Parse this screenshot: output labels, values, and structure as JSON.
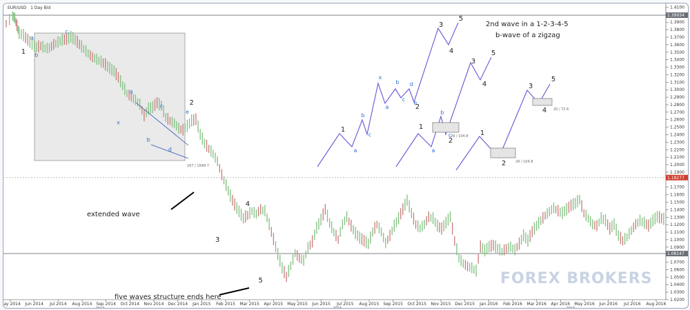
{
  "chart_data": {
    "type": "line",
    "symbol": "EUR/USD",
    "timeframe": "1 Day Bid",
    "y_ticks": [
      "1.4100",
      "1.4000",
      "1.3900",
      "1.3800",
      "1.3700",
      "1.3600",
      "1.3500",
      "1.3400",
      "1.3300",
      "1.3200",
      "1.3100",
      "1.3000",
      "1.2900",
      "1.2800",
      "1.2700",
      "1.2600",
      "1.2500",
      "1.2400",
      "1.2300",
      "1.2200",
      "1.2100",
      "1.2000",
      "1.1900",
      "1.1700",
      "1.1600",
      "1.1500",
      "1.1400",
      "1.1300",
      "1.1200",
      "1.1100",
      "1.1000",
      "1.0900",
      "1.0700",
      "1.0600",
      "1.0500",
      "1.0400",
      "1.0300",
      "1.0200"
    ],
    "ylim": [
      1.02,
      1.415
    ],
    "x_ticks": [
      "May 2014",
      "Jun 2014",
      "Jul 2014",
      "Aug 2014",
      "Sep 2014",
      "Oct 2014",
      "Nov 2014",
      "Dec 2014",
      "Jan 2015",
      "Feb 2015",
      "Mar 2015",
      "Apr 2015",
      "May 2015",
      "Jun 2015",
      "Jul 2015",
      "Aug 2015",
      "Sep 2015",
      "Oct 2015",
      "Nov 2015",
      "Dec 2015",
      "Jan 2016",
      "Feb 2016",
      "Mar 2016",
      "Apr 2016",
      "May 2016",
      "Jun 2016",
      "Jul 2016",
      "Aug 2016"
    ],
    "x_sublabels": [
      "2014",
      "2015",
      "2016"
    ],
    "price_markers": [
      {
        "label": "1.39934",
        "price": 1.39934,
        "color": "#6b6f78"
      },
      {
        "label": "1.18277",
        "price": 1.18277,
        "color": "#d04030"
      },
      {
        "label": "1.08147",
        "price": 1.08147,
        "color": "#6b6f78"
      }
    ],
    "series": [
      {
        "values": [
          {
            "x": 0,
            "y": 1.388
          },
          {
            "x": 3,
            "y": 1.398
          },
          {
            "x": 4,
            "y": 1.395
          },
          {
            "x": 5,
            "y": 1.385
          },
          {
            "x": 6,
            "y": 1.375
          },
          {
            "x": 8,
            "y": 1.372
          },
          {
            "x": 10,
            "y": 1.366
          },
          {
            "x": 12,
            "y": 1.36
          },
          {
            "x": 14,
            "y": 1.356
          },
          {
            "x": 16,
            "y": 1.358
          },
          {
            "x": 18,
            "y": 1.355
          },
          {
            "x": 20,
            "y": 1.355
          },
          {
            "x": 22,
            "y": 1.36
          },
          {
            "x": 24,
            "y": 1.363
          },
          {
            "x": 26,
            "y": 1.366
          },
          {
            "x": 28,
            "y": 1.367
          },
          {
            "x": 30,
            "y": 1.37
          },
          {
            "x": 32,
            "y": 1.366
          },
          {
            "x": 34,
            "y": 1.36
          },
          {
            "x": 36,
            "y": 1.354
          },
          {
            "x": 38,
            "y": 1.348
          },
          {
            "x": 40,
            "y": 1.343
          },
          {
            "x": 42,
            "y": 1.34
          },
          {
            "x": 44,
            "y": 1.337
          },
          {
            "x": 46,
            "y": 1.333
          },
          {
            "x": 48,
            "y": 1.328
          },
          {
            "x": 50,
            "y": 1.324
          },
          {
            "x": 52,
            "y": 1.316
          },
          {
            "x": 54,
            "y": 1.305
          },
          {
            "x": 56,
            "y": 1.295
          },
          {
            "x": 58,
            "y": 1.29
          },
          {
            "x": 60,
            "y": 1.286
          },
          {
            "x": 62,
            "y": 1.28
          },
          {
            "x": 64,
            "y": 1.265
          },
          {
            "x": 66,
            "y": 1.274
          },
          {
            "x": 68,
            "y": 1.276
          },
          {
            "x": 70,
            "y": 1.282
          },
          {
            "x": 72,
            "y": 1.278
          },
          {
            "x": 74,
            "y": 1.263
          },
          {
            "x": 76,
            "y": 1.258
          },
          {
            "x": 78,
            "y": 1.255
          },
          {
            "x": 80,
            "y": 1.248
          },
          {
            "x": 82,
            "y": 1.246
          },
          {
            "x": 84,
            "y": 1.251
          },
          {
            "x": 86,
            "y": 1.258
          },
          {
            "x": 88,
            "y": 1.26
          },
          {
            "x": 90,
            "y": 1.24
          },
          {
            "x": 92,
            "y": 1.228
          },
          {
            "x": 94,
            "y": 1.221
          },
          {
            "x": 96,
            "y": 1.214
          },
          {
            "x": 98,
            "y": 1.204
          },
          {
            "x": 100,
            "y": 1.186
          },
          {
            "x": 102,
            "y": 1.172
          },
          {
            "x": 104,
            "y": 1.158
          },
          {
            "x": 106,
            "y": 1.146
          },
          {
            "x": 108,
            "y": 1.137
          },
          {
            "x": 110,
            "y": 1.128
          },
          {
            "x": 112,
            "y": 1.132
          },
          {
            "x": 114,
            "y": 1.138
          },
          {
            "x": 116,
            "y": 1.134
          },
          {
            "x": 118,
            "y": 1.14
          },
          {
            "x": 120,
            "y": 1.138
          },
          {
            "x": 122,
            "y": 1.12
          },
          {
            "x": 124,
            "y": 1.1
          },
          {
            "x": 126,
            "y": 1.08
          },
          {
            "x": 128,
            "y": 1.062
          },
          {
            "x": 130,
            "y": 1.05
          },
          {
            "x": 132,
            "y": 1.065
          },
          {
            "x": 134,
            "y": 1.082
          },
          {
            "x": 136,
            "y": 1.075
          },
          {
            "x": 138,
            "y": 1.072
          },
          {
            "x": 140,
            "y": 1.088
          },
          {
            "x": 142,
            "y": 1.097
          },
          {
            "x": 144,
            "y": 1.115
          },
          {
            "x": 146,
            "y": 1.126
          },
          {
            "x": 148,
            "y": 1.14
          },
          {
            "x": 150,
            "y": 1.122
          },
          {
            "x": 152,
            "y": 1.11
          },
          {
            "x": 154,
            "y": 1.1
          },
          {
            "x": 156,
            "y": 1.12
          },
          {
            "x": 158,
            "y": 1.13
          },
          {
            "x": 160,
            "y": 1.118
          },
          {
            "x": 162,
            "y": 1.108
          },
          {
            "x": 164,
            "y": 1.102
          },
          {
            "x": 166,
            "y": 1.098
          },
          {
            "x": 168,
            "y": 1.094
          },
          {
            "x": 170,
            "y": 1.11
          },
          {
            "x": 172,
            "y": 1.12
          },
          {
            "x": 174,
            "y": 1.11
          },
          {
            "x": 176,
            "y": 1.095
          },
          {
            "x": 178,
            "y": 1.105
          },
          {
            "x": 180,
            "y": 1.118
          },
          {
            "x": 182,
            "y": 1.128
          },
          {
            "x": 184,
            "y": 1.14
          },
          {
            "x": 186,
            "y": 1.152
          },
          {
            "x": 188,
            "y": 1.135
          },
          {
            "x": 190,
            "y": 1.12
          },
          {
            "x": 192,
            "y": 1.115
          },
          {
            "x": 194,
            "y": 1.12
          },
          {
            "x": 196,
            "y": 1.13
          },
          {
            "x": 198,
            "y": 1.128
          },
          {
            "x": 200,
            "y": 1.118
          },
          {
            "x": 202,
            "y": 1.114
          },
          {
            "x": 204,
            "y": 1.122
          },
          {
            "x": 206,
            "y": 1.13
          },
          {
            "x": 208,
            "y": 1.098
          },
          {
            "x": 210,
            "y": 1.075
          },
          {
            "x": 212,
            "y": 1.068
          },
          {
            "x": 214,
            "y": 1.064
          },
          {
            "x": 216,
            "y": 1.062
          },
          {
            "x": 218,
            "y": 1.058
          },
          {
            "x": 220,
            "y": 1.09
          },
          {
            "x": 222,
            "y": 1.085
          },
          {
            "x": 224,
            "y": 1.09
          },
          {
            "x": 226,
            "y": 1.092
          },
          {
            "x": 228,
            "y": 1.088
          },
          {
            "x": 230,
            "y": 1.084
          },
          {
            "x": 232,
            "y": 1.088
          },
          {
            "x": 234,
            "y": 1.09
          },
          {
            "x": 236,
            "y": 1.086
          },
          {
            "x": 238,
            "y": 1.094
          },
          {
            "x": 240,
            "y": 1.105
          },
          {
            "x": 242,
            "y": 1.098
          },
          {
            "x": 244,
            "y": 1.11
          },
          {
            "x": 246,
            "y": 1.118
          },
          {
            "x": 248,
            "y": 1.125
          },
          {
            "x": 250,
            "y": 1.132
          },
          {
            "x": 252,
            "y": 1.137
          },
          {
            "x": 254,
            "y": 1.142
          },
          {
            "x": 256,
            "y": 1.138
          },
          {
            "x": 258,
            "y": 1.135
          },
          {
            "x": 260,
            "y": 1.14
          },
          {
            "x": 262,
            "y": 1.145
          },
          {
            "x": 264,
            "y": 1.148
          },
          {
            "x": 266,
            "y": 1.153
          },
          {
            "x": 268,
            "y": 1.135
          },
          {
            "x": 270,
            "y": 1.128
          },
          {
            "x": 272,
            "y": 1.12
          },
          {
            "x": 274,
            "y": 1.118
          },
          {
            "x": 276,
            "y": 1.128
          },
          {
            "x": 278,
            "y": 1.125
          },
          {
            "x": 280,
            "y": 1.114
          },
          {
            "x": 282,
            "y": 1.12
          },
          {
            "x": 284,
            "y": 1.105
          },
          {
            "x": 286,
            "y": 1.098
          },
          {
            "x": 288,
            "y": 1.103
          },
          {
            "x": 290,
            "y": 1.112
          },
          {
            "x": 292,
            "y": 1.12
          },
          {
            "x": 294,
            "y": 1.125
          },
          {
            "x": 296,
            "y": 1.122
          },
          {
            "x": 298,
            "y": 1.118
          },
          {
            "x": 300,
            "y": 1.125
          },
          {
            "x": 302,
            "y": 1.13
          },
          {
            "x": 304,
            "y": 1.128
          },
          {
            "x": 306,
            "y": 1.126
          }
        ]
      }
    ],
    "annotations": {
      "left_wave_labels": [
        {
          "text": "1",
          "x": 8,
          "y": 1.348,
          "style": "black"
        },
        {
          "text": "a",
          "x": 12,
          "y": 1.367,
          "style": "blue"
        },
        {
          "text": "b",
          "x": 14,
          "y": 1.344,
          "style": "blue"
        },
        {
          "text": "c",
          "x": 28,
          "y": 1.375,
          "style": "blue"
        },
        {
          "text": "a",
          "x": 58,
          "y": 1.295,
          "style": "blue"
        },
        {
          "text": "x",
          "x": 52,
          "y": 1.254,
          "style": "blue"
        },
        {
          "text": "c",
          "x": 72,
          "y": 1.276,
          "style": "blue"
        },
        {
          "text": "b",
          "x": 66,
          "y": 1.231,
          "style": "blue"
        },
        {
          "text": "d",
          "x": 76,
          "y": 1.218,
          "style": "blue"
        },
        {
          "text": "e",
          "x": 84,
          "y": 1.268,
          "style": "blue"
        },
        {
          "text": "2",
          "x": 86,
          "y": 1.28,
          "style": "black"
        },
        {
          "text": "3",
          "x": 98,
          "y": 1.097,
          "style": "black"
        },
        {
          "text": "4",
          "x": 112,
          "y": 1.145,
          "style": "black"
        },
        {
          "text": "5",
          "x": 118,
          "y": 1.043,
          "style": "black"
        }
      ],
      "notes": [
        {
          "text": "extended wave"
        },
        {
          "text": "five waves structure ends here"
        },
        {
          "text": "2nd wave in a 1-2-3-4-5"
        },
        {
          "text": "b-wave of a zigzag"
        }
      ],
      "ratio_labels": [
        "167 / 1648.7",
        "29 / 104.8",
        "29 / 104.8",
        "20 / 72.6"
      ],
      "schematic_labels": {
        "pattern1": [
          "1",
          "a",
          "b",
          "c",
          "x",
          "a",
          "b",
          "c",
          "d",
          "e",
          "2",
          "3",
          "4",
          "5"
        ],
        "pattern2": [
          "1",
          "a",
          "b",
          "c",
          "2",
          "3",
          "4",
          "5"
        ],
        "pattern3": [
          "1",
          "2",
          "3",
          "4",
          "5"
        ]
      }
    },
    "watermark": "FOREX BROKERS"
  }
}
